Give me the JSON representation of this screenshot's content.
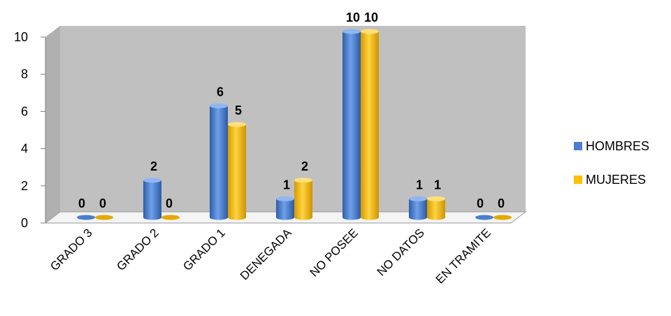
{
  "chart_data": {
    "type": "bar",
    "categories": [
      "GRADO 3",
      "GRADO 2",
      "GRADO 1",
      "DENEGADA",
      "NO POSEE",
      "NO DATOS",
      "EN TRAMITE"
    ],
    "series": [
      {
        "name": "HOMBRES",
        "values": [
          0,
          2,
          6,
          1,
          10,
          1,
          0
        ],
        "color": "#4a7fd0"
      },
      {
        "name": "MUJERES",
        "values": [
          0,
          0,
          5,
          2,
          10,
          1,
          0
        ],
        "color": "#ffc000"
      }
    ],
    "yticks": [
      "0",
      "2",
      "4",
      "6",
      "8",
      "10"
    ],
    "ylim": [
      0,
      10
    ],
    "title": "",
    "xlabel": "",
    "ylabel": "",
    "legend": "right",
    "grid": false,
    "wall_color": "#c0c0c0"
  }
}
